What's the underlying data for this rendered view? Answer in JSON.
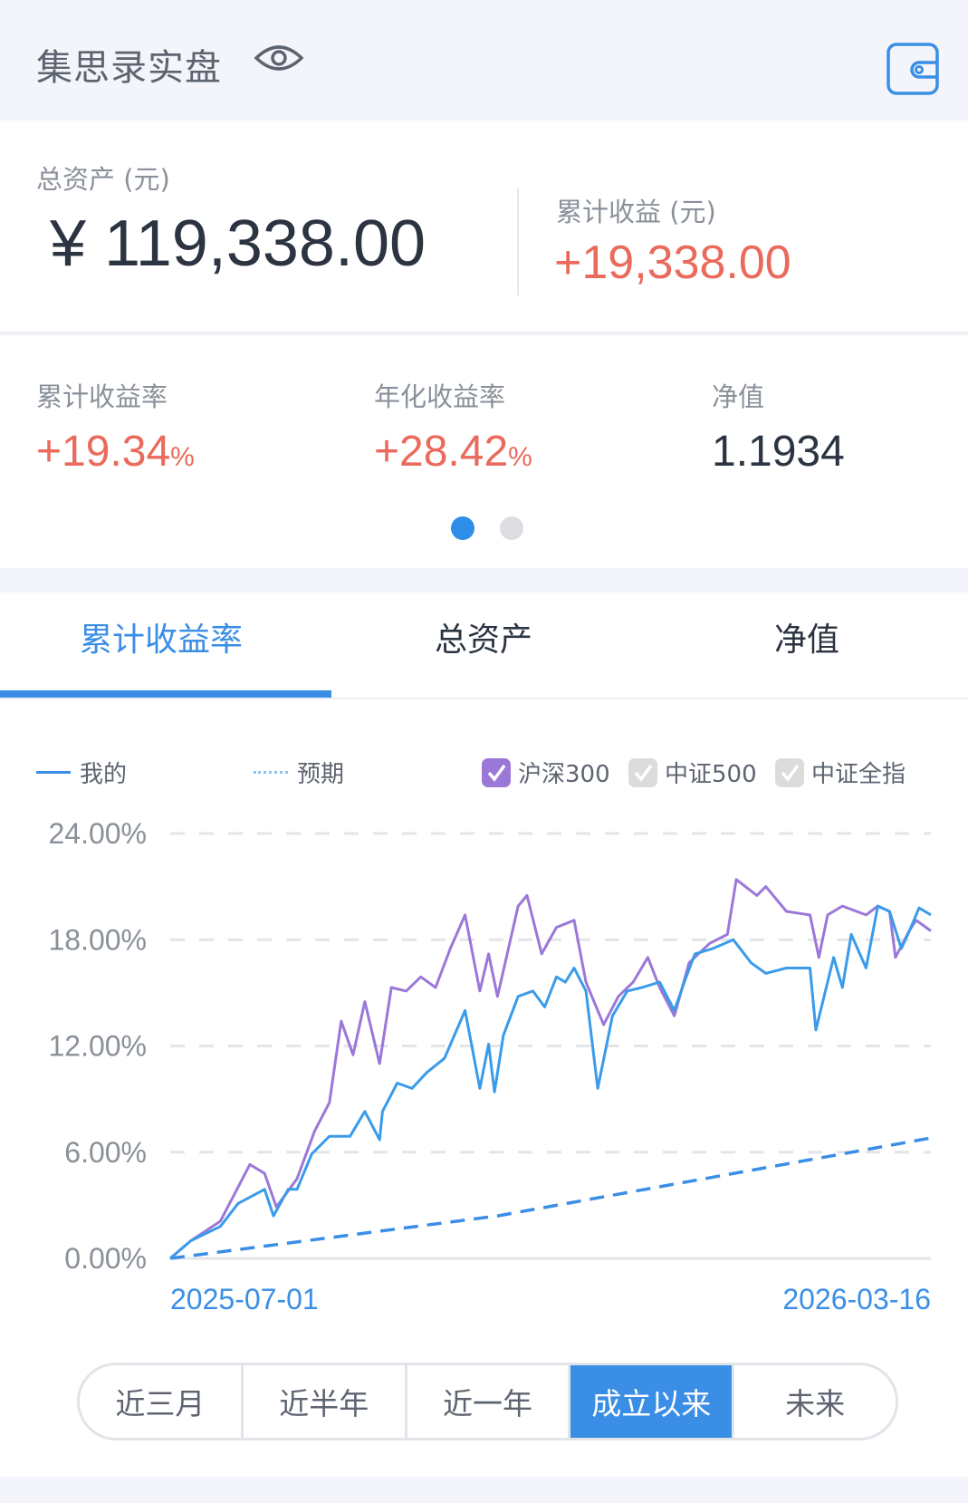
{
  "header": {
    "title": "集思录实盘",
    "eye_icon": "eye-icon",
    "wallet_icon": "wallet-icon"
  },
  "assets": {
    "total_label": "总资产 (元)",
    "total_value": "¥ 119,338.00",
    "profit_label": "累计收益 (元)",
    "profit_value": "+19,338.00"
  },
  "stats": [
    {
      "label": "累计收益率",
      "value": "+19.34",
      "unit": "%"
    },
    {
      "label": "年化收益率",
      "value": "+28.42",
      "unit": "%"
    },
    {
      "label": "净值",
      "value": "1.1934",
      "unit": ""
    }
  ],
  "pager": {
    "pages": 2,
    "active": 1
  },
  "tabs": [
    {
      "label": "累计收益率",
      "active": true
    },
    {
      "label": "总资产",
      "active": false
    },
    {
      "label": "净值",
      "active": false
    }
  ],
  "legend": {
    "mine": "我的",
    "expected": "预期",
    "indices": [
      {
        "label": "沪深300",
        "checked": true,
        "color": "#9b78d8"
      },
      {
        "label": "中证500",
        "checked": false
      },
      {
        "label": "中证全指",
        "checked": false
      }
    ]
  },
  "colors": {
    "accent": "#3a8ee6",
    "positive": "#ea6a5b",
    "hs300": "#9b78d8",
    "mine": "#3a9bea"
  },
  "chart_data": {
    "type": "line",
    "ylim": [
      0,
      24
    ],
    "yticks": [
      "0.00%",
      "6.00%",
      "12.00%",
      "18.00%",
      "24.00%"
    ],
    "ytick_values": [
      0,
      6,
      12,
      18,
      24
    ],
    "xlim": [
      "2025-07-01",
      "2026-03-16"
    ],
    "xticks": [
      "2025-07-01",
      "2026-03-16"
    ],
    "grid": true,
    "series": [
      {
        "name": "我的",
        "style": "solid",
        "color": "#3a9bea",
        "points": [
          [
            "2025-07-01",
            0
          ],
          [
            "2025-07-08",
            1.0
          ],
          [
            "2025-07-18",
            1.8
          ],
          [
            "2025-07-24",
            3.1
          ],
          [
            "2025-08-02",
            3.9
          ],
          [
            "2025-08-05",
            2.4
          ],
          [
            "2025-08-10",
            3.9
          ],
          [
            "2025-08-13",
            3.9
          ],
          [
            "2025-08-18",
            5.9
          ],
          [
            "2025-08-24",
            6.9
          ],
          [
            "2025-08-31",
            6.9
          ],
          [
            "2025-09-05",
            8.3
          ],
          [
            "2025-09-10",
            6.7
          ],
          [
            "2025-09-11",
            8.3
          ],
          [
            "2025-09-16",
            9.9
          ],
          [
            "2025-09-21",
            9.6
          ],
          [
            "2025-09-26",
            10.5
          ],
          [
            "2025-10-02",
            11.3
          ],
          [
            "2025-10-09",
            14.0
          ],
          [
            "2025-10-14",
            9.6
          ],
          [
            "2025-10-17",
            12.1
          ],
          [
            "2025-10-19",
            9.4
          ],
          [
            "2025-10-22",
            12.6
          ],
          [
            "2025-10-27",
            14.8
          ],
          [
            "2025-11-01",
            15.1
          ],
          [
            "2025-11-05",
            14.2
          ],
          [
            "2025-11-09",
            15.9
          ],
          [
            "2025-11-12",
            15.6
          ],
          [
            "2025-11-15",
            16.4
          ],
          [
            "2025-11-19",
            15.1
          ],
          [
            "2025-11-23",
            9.6
          ],
          [
            "2025-11-28",
            13.7
          ],
          [
            "2025-12-03",
            15.1
          ],
          [
            "2025-12-08",
            15.3
          ],
          [
            "2025-12-14",
            15.6
          ],
          [
            "2025-12-19",
            14.0
          ],
          [
            "2025-12-23",
            15.9
          ],
          [
            "2025-12-26",
            17.2
          ],
          [
            "2026-01-01",
            17.5
          ],
          [
            "2026-01-08",
            18.0
          ],
          [
            "2026-01-14",
            16.7
          ],
          [
            "2026-01-19",
            16.1
          ],
          [
            "2026-01-26",
            16.4
          ],
          [
            "2026-02-03",
            16.4
          ],
          [
            "2026-02-05",
            12.9
          ],
          [
            "2026-02-11",
            17.0
          ],
          [
            "2026-02-14",
            15.3
          ],
          [
            "2026-02-17",
            18.3
          ],
          [
            "2026-02-22",
            16.4
          ],
          [
            "2026-02-26",
            19.9
          ],
          [
            "2026-03-02",
            19.6
          ],
          [
            "2026-03-06",
            17.5
          ],
          [
            "2026-03-09",
            18.6
          ],
          [
            "2026-03-12",
            19.8
          ],
          [
            "2026-03-16",
            19.4
          ]
        ]
      },
      {
        "name": "沪深300",
        "style": "solid",
        "color": "#9b78d8",
        "points": [
          [
            "2025-07-01",
            0
          ],
          [
            "2025-07-08",
            1.0
          ],
          [
            "2025-07-18",
            2.1
          ],
          [
            "2025-07-28",
            5.3
          ],
          [
            "2025-08-02",
            4.8
          ],
          [
            "2025-08-06",
            2.9
          ],
          [
            "2025-08-13",
            4.5
          ],
          [
            "2025-08-19",
            7.2
          ],
          [
            "2025-08-24",
            8.8
          ],
          [
            "2025-08-28",
            13.4
          ],
          [
            "2025-09-01",
            11.5
          ],
          [
            "2025-09-05",
            14.5
          ],
          [
            "2025-09-10",
            11.0
          ],
          [
            "2025-09-14",
            15.3
          ],
          [
            "2025-09-19",
            15.1
          ],
          [
            "2025-09-24",
            15.9
          ],
          [
            "2025-09-29",
            15.3
          ],
          [
            "2025-10-04",
            17.5
          ],
          [
            "2025-10-09",
            19.4
          ],
          [
            "2025-10-14",
            15.1
          ],
          [
            "2025-10-17",
            17.2
          ],
          [
            "2025-10-20",
            14.8
          ],
          [
            "2025-10-27",
            19.9
          ],
          [
            "2025-10-30",
            20.5
          ],
          [
            "2025-11-04",
            17.2
          ],
          [
            "2025-11-09",
            18.7
          ],
          [
            "2025-11-15",
            19.1
          ],
          [
            "2025-11-19",
            15.6
          ],
          [
            "2025-11-25",
            13.2
          ],
          [
            "2025-11-30",
            14.8
          ],
          [
            "2025-12-05",
            15.6
          ],
          [
            "2025-12-10",
            17.0
          ],
          [
            "2025-12-14",
            15.3
          ],
          [
            "2025-12-19",
            13.7
          ],
          [
            "2025-12-24",
            16.7
          ],
          [
            "2025-12-31",
            17.8
          ],
          [
            "2026-01-06",
            18.3
          ],
          [
            "2026-01-09",
            21.4
          ],
          [
            "2026-01-16",
            20.5
          ],
          [
            "2026-01-19",
            21.0
          ],
          [
            "2026-01-26",
            19.6
          ],
          [
            "2026-02-03",
            19.4
          ],
          [
            "2026-02-06",
            17.0
          ],
          [
            "2026-02-09",
            19.4
          ],
          [
            "2026-02-14",
            19.9
          ],
          [
            "2026-02-22",
            19.4
          ],
          [
            "2026-02-26",
            19.9
          ],
          [
            "2026-03-02",
            19.6
          ],
          [
            "2026-03-04",
            17.0
          ],
          [
            "2026-03-09",
            18.6
          ],
          [
            "2026-03-11",
            19.1
          ],
          [
            "2026-03-16",
            18.5
          ]
        ]
      },
      {
        "name": "预期",
        "style": "dashed",
        "color": "#3a8ee6",
        "points": [
          [
            "2025-07-01",
            0
          ],
          [
            "2025-10-20",
            2.4
          ],
          [
            "2026-03-16",
            6.8
          ]
        ]
      }
    ]
  },
  "ranges": [
    {
      "label": "近三月",
      "active": false
    },
    {
      "label": "近半年",
      "active": false
    },
    {
      "label": "近一年",
      "active": false
    },
    {
      "label": "成立以来",
      "active": true
    },
    {
      "label": "未来",
      "active": false
    }
  ]
}
